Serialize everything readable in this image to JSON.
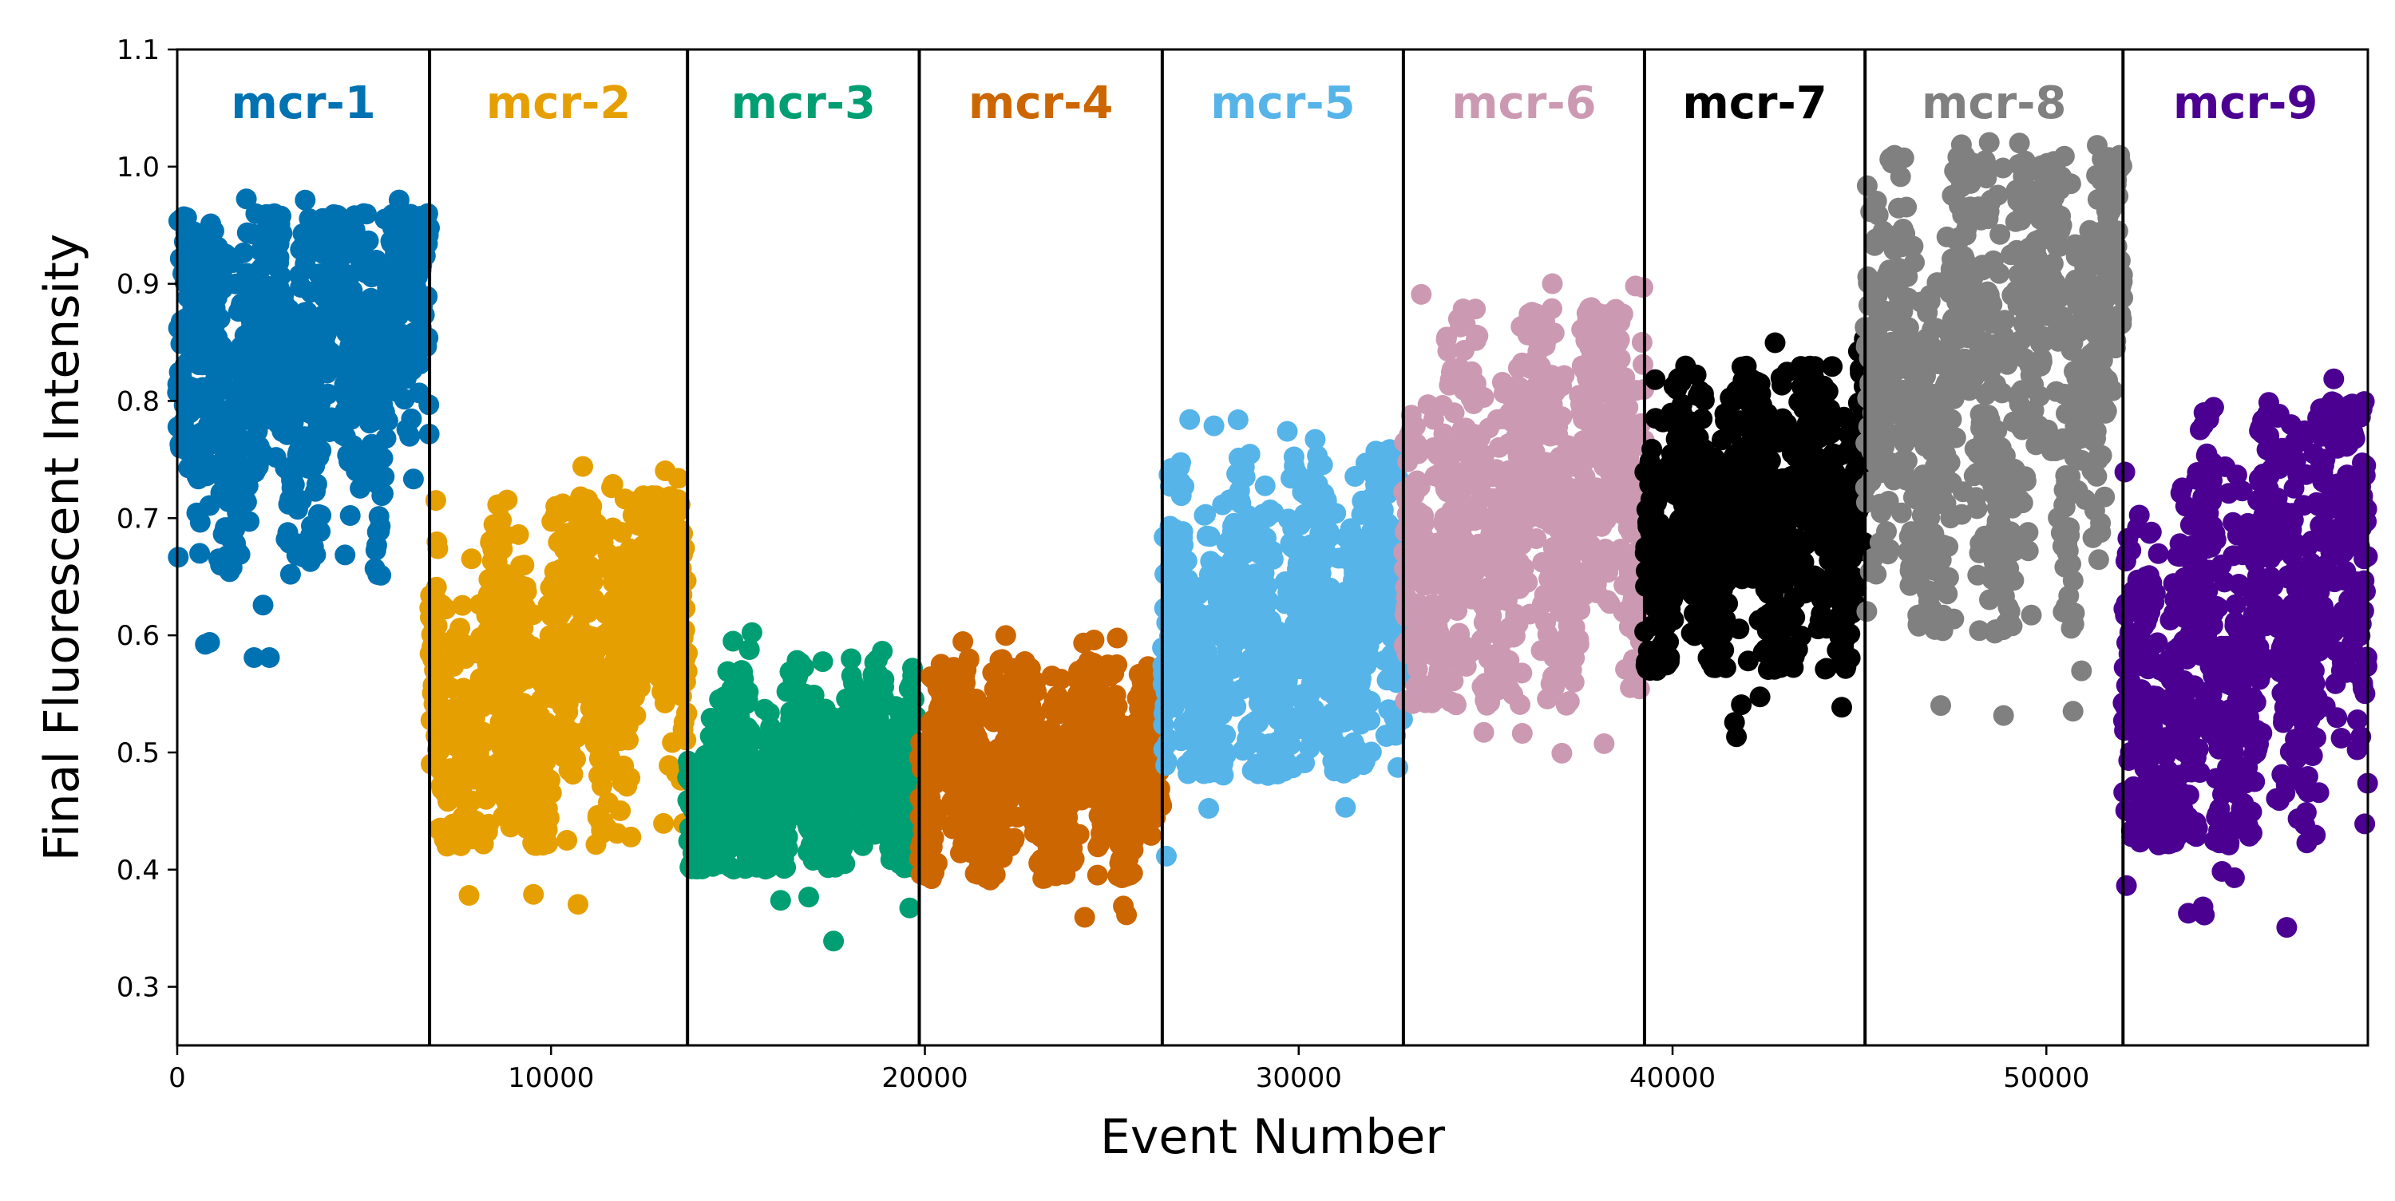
{
  "chart_data": {
    "type": "scatter",
    "title": "",
    "xlabel": "Event Number",
    "ylabel": "Final Fluorescent Intensity",
    "xlim": [
      0,
      58600
    ],
    "ylim": [
      0.25,
      1.1
    ],
    "xticks": [
      "0",
      "10000",
      "20000",
      "30000",
      "40000",
      "50000"
    ],
    "yticks": [
      "0.3",
      "0.4",
      "0.5",
      "0.6",
      "0.7",
      "0.8",
      "0.9",
      "1.0",
      "1.1"
    ],
    "xtick_values": [
      0,
      10000,
      20000,
      30000,
      40000,
      50000
    ],
    "ytick_values": [
      0.3,
      0.4,
      0.5,
      0.6,
      0.7,
      0.8,
      0.9,
      1.0,
      1.1
    ],
    "grid": false,
    "legend": "none",
    "boundaries": [
      6750,
      13650,
      19850,
      26350,
      32800,
      39250,
      45150,
      52050
    ],
    "segments": [
      {
        "name": "mcr-1",
        "color": "#0072B2",
        "x_start": 0,
        "x_end": 6750,
        "y_start": 0.8,
        "y_end": 0.88,
        "band_low": 0.65,
        "band_high": 0.96
      },
      {
        "name": "mcr-2",
        "color": "#E69F00",
        "x_start": 6750,
        "x_end": 13650,
        "y_start": 0.5,
        "y_end": 0.64,
        "band_low": 0.42,
        "band_high": 0.72
      },
      {
        "name": "mcr-3",
        "color": "#009E73",
        "x_start": 13650,
        "x_end": 19850,
        "y_start": 0.45,
        "y_end": 0.5,
        "band_low": 0.4,
        "band_high": 0.58
      },
      {
        "name": "mcr-4",
        "color": "#CC6600",
        "x_start": 19850,
        "x_end": 26350,
        "y_start": 0.48,
        "y_end": 0.5,
        "band_low": 0.39,
        "band_high": 0.58
      },
      {
        "name": "mcr-5",
        "color": "#56B4E9",
        "x_start": 26350,
        "x_end": 32800,
        "y_start": 0.57,
        "y_end": 0.63,
        "band_low": 0.48,
        "band_high": 0.76
      },
      {
        "name": "mcr-6",
        "color": "#CC99B2",
        "x_start": 32800,
        "x_end": 39250,
        "y_start": 0.66,
        "y_end": 0.76,
        "band_low": 0.54,
        "band_high": 0.88
      },
      {
        "name": "mcr-7",
        "color": "#000000",
        "x_start": 39250,
        "x_end": 45150,
        "y_start": 0.68,
        "y_end": 0.72,
        "band_low": 0.57,
        "band_high": 0.83
      },
      {
        "name": "mcr-8",
        "color": "#808080",
        "x_start": 45150,
        "x_end": 52050,
        "y_start": 0.78,
        "y_end": 0.87,
        "band_low": 0.6,
        "band_high": 1.01
      },
      {
        "name": "mcr-9",
        "color": "#4B0092",
        "x_start": 52050,
        "x_end": 58600,
        "y_start": 0.5,
        "y_end": 0.7,
        "band_low": 0.42,
        "band_high": 0.8
      }
    ]
  }
}
